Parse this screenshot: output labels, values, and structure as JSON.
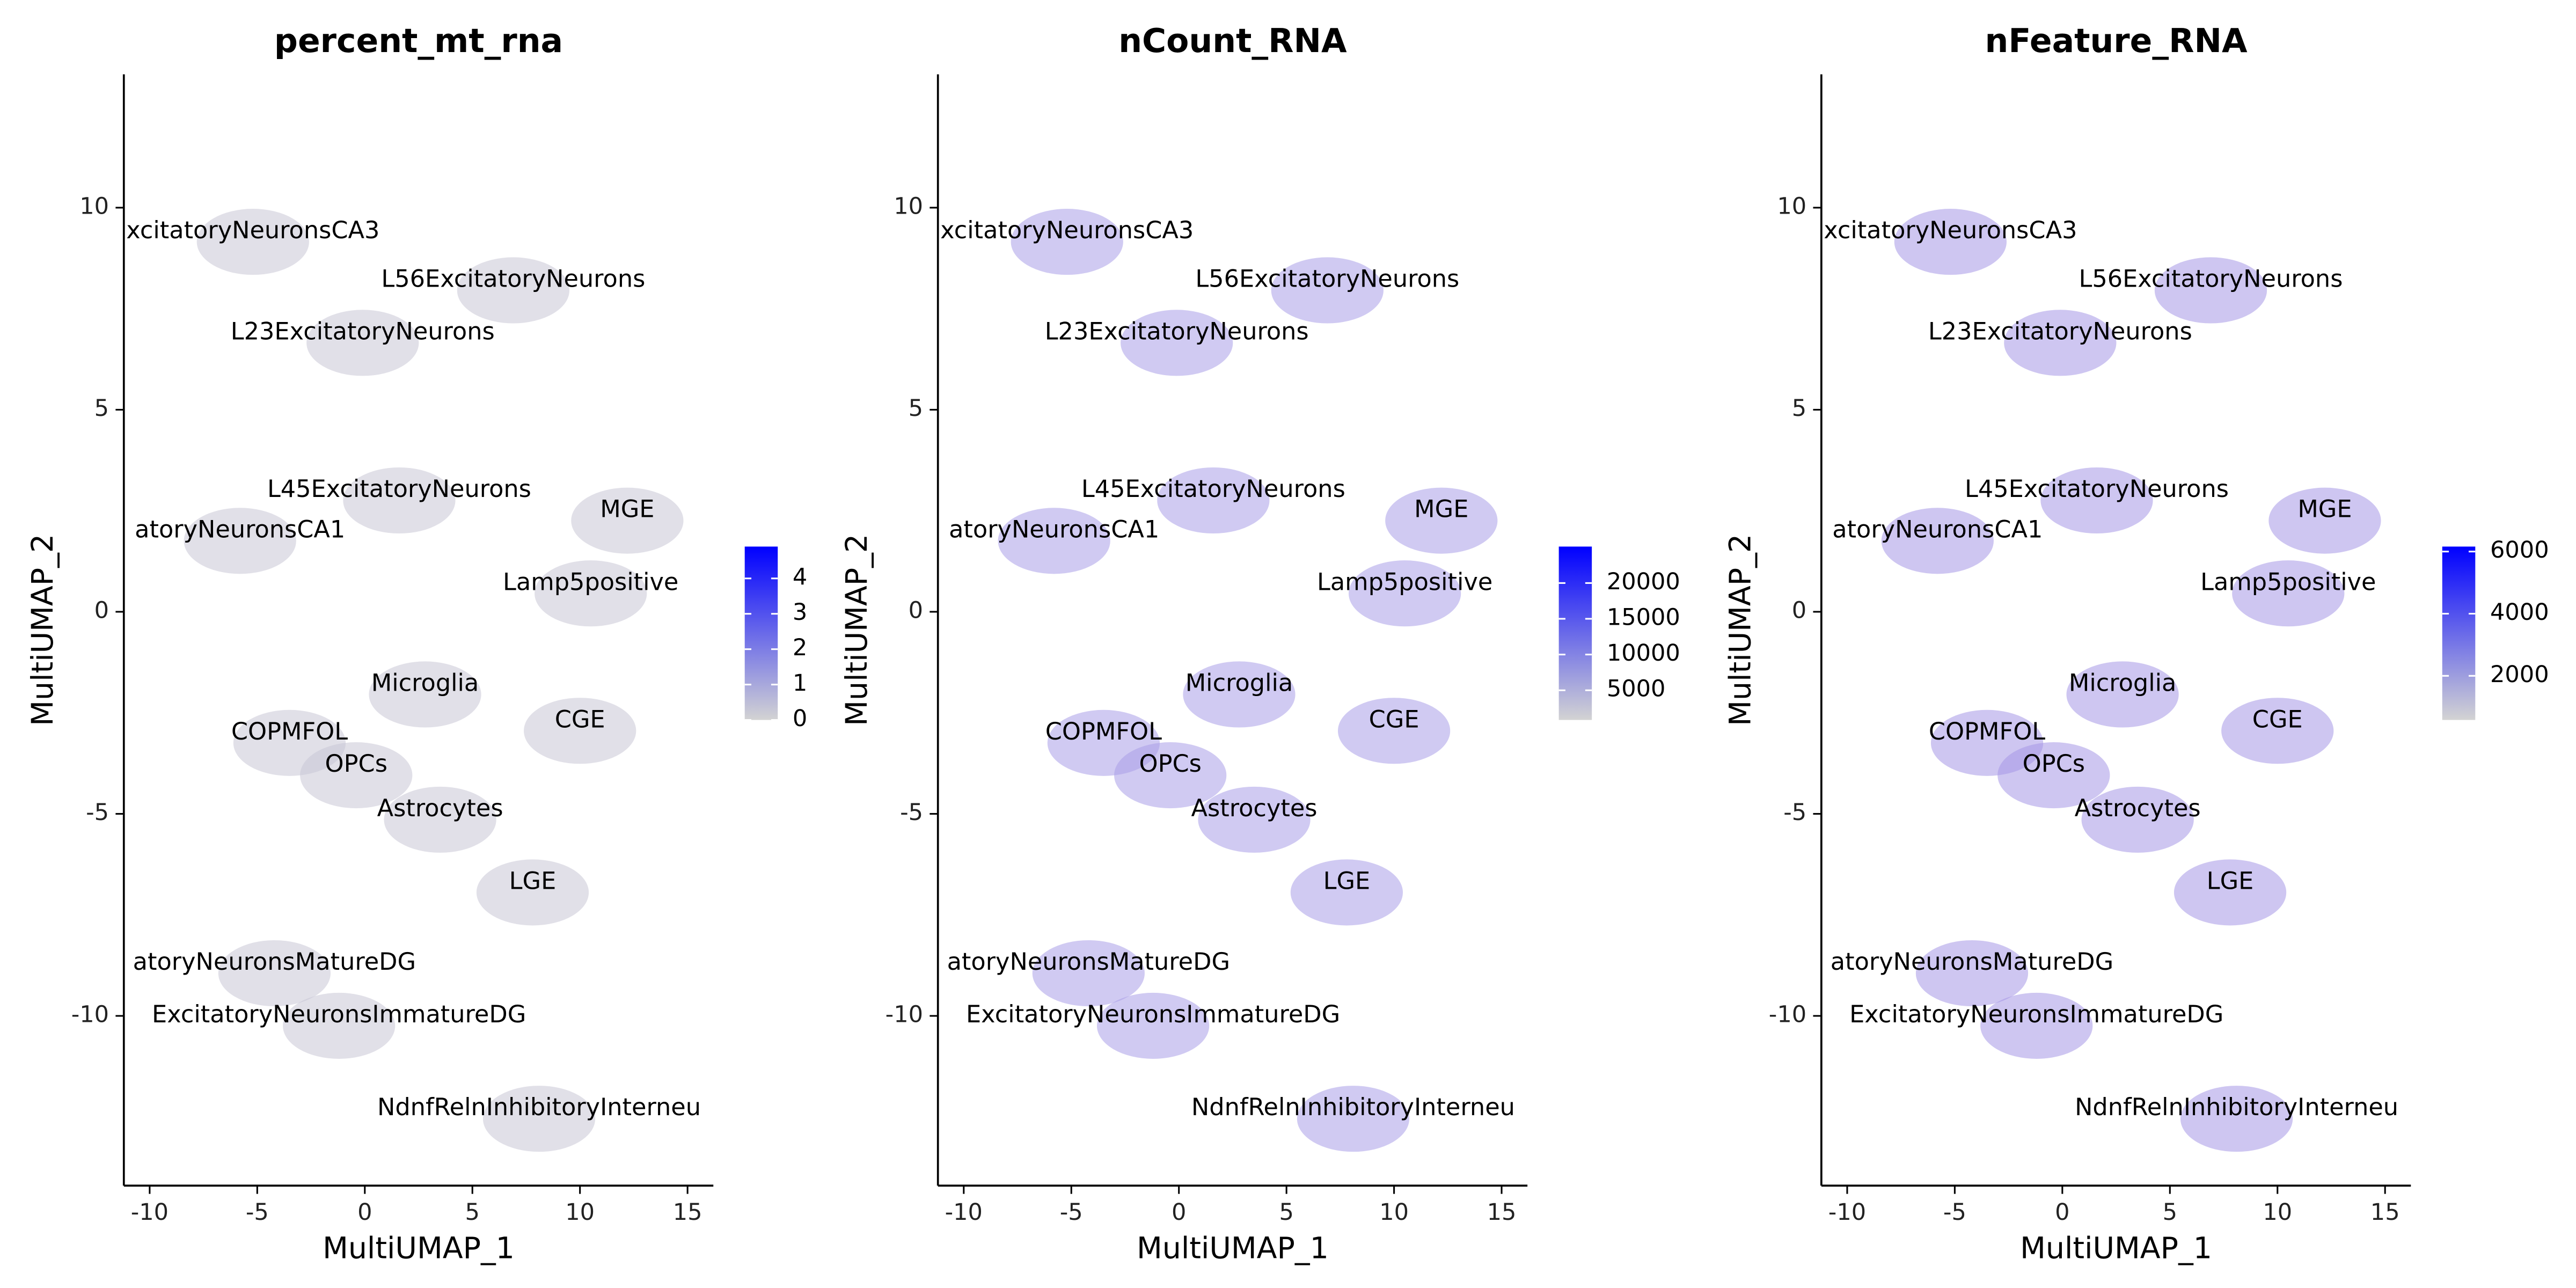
{
  "chart_data": [
    {
      "type": "scatter",
      "title": "percent_mt_rna",
      "xlabel": "MultiUMAP_1",
      "ylabel": "MultiUMAP_2",
      "xlim": [
        -11.2,
        16.2
      ],
      "ylim": [
        -14.2,
        13.3
      ],
      "xticks": [
        -10,
        -5,
        0,
        5,
        10,
        15
      ],
      "yticks": [
        -10,
        -5,
        0,
        5,
        10
      ],
      "point_color": "#c9c6d6",
      "colorbar": {
        "lim": [
          0,
          4.9
        ],
        "ticks": [
          0,
          1,
          2,
          3,
          4
        ],
        "low_color": "#d3d3d3",
        "high_color": "#0000ff"
      },
      "annotations": [
        {
          "text": "xcitatoryNeuronsCA3",
          "x": -5.2,
          "y": 9.4
        },
        {
          "text": "L56ExcitatoryNeurons",
          "x": 6.9,
          "y": 8.2
        },
        {
          "text": "L23ExcitatoryNeurons",
          "x": -0.1,
          "y": 6.9
        },
        {
          "text": "L45ExcitatoryNeurons",
          "x": 1.6,
          "y": 3.0
        },
        {
          "text": "atoryNeuronsCA1",
          "x": -5.8,
          "y": 2.0
        },
        {
          "text": "MGE",
          "x": 12.2,
          "y": 2.5
        },
        {
          "text": "Lamp5positive",
          "x": 10.5,
          "y": 0.7
        },
        {
          "text": "Microglia",
          "x": 2.8,
          "y": -1.8
        },
        {
          "text": "CGE",
          "x": 10.0,
          "y": -2.7
        },
        {
          "text": "COPMFOL",
          "x": -3.5,
          "y": -3.0
        },
        {
          "text": "OPCs",
          "x": -0.4,
          "y": -3.8
        },
        {
          "text": "Astrocytes",
          "x": 3.5,
          "y": -4.9
        },
        {
          "text": "LGE",
          "x": 7.8,
          "y": -6.7
        },
        {
          "text": "atoryNeuronsMatureDG",
          "x": -4.2,
          "y": -8.7
        },
        {
          "text": "ExcitatoryNeuronsImmatureDG",
          "x": -1.2,
          "y": -10.0
        },
        {
          "text": "NdnfRelnInhibitoryInterneu",
          "x": 8.1,
          "y": -12.3
        }
      ]
    },
    {
      "type": "scatter",
      "title": "nCount_RNA",
      "xlabel": "MultiUMAP_1",
      "ylabel": "MultiUMAP_2",
      "xlim": [
        -11.2,
        16.2
      ],
      "ylim": [
        -14.2,
        13.3
      ],
      "xticks": [
        -10,
        -5,
        0,
        5,
        10,
        15
      ],
      "yticks": [
        -10,
        -5,
        0,
        5,
        10
      ],
      "point_color": "#a99ee8",
      "colorbar": {
        "lim": [
          850,
          25100
        ],
        "ticks": [
          5000,
          10000,
          15000,
          20000
        ],
        "low_color": "#d3d3d3",
        "high_color": "#0000ff"
      },
      "annotations": [
        {
          "text": "xcitatoryNeuronsCA3",
          "x": -5.2,
          "y": 9.4
        },
        {
          "text": "L56ExcitatoryNeurons",
          "x": 6.9,
          "y": 8.2
        },
        {
          "text": "L23ExcitatoryNeurons",
          "x": -0.1,
          "y": 6.9
        },
        {
          "text": "L45ExcitatoryNeurons",
          "x": 1.6,
          "y": 3.0
        },
        {
          "text": "atoryNeuronsCA1",
          "x": -5.8,
          "y": 2.0
        },
        {
          "text": "MGE",
          "x": 12.2,
          "y": 2.5
        },
        {
          "text": "Lamp5positive",
          "x": 10.5,
          "y": 0.7
        },
        {
          "text": "Microglia",
          "x": 2.8,
          "y": -1.8
        },
        {
          "text": "CGE",
          "x": 10.0,
          "y": -2.7
        },
        {
          "text": "COPMFOL",
          "x": -3.5,
          "y": -3.0
        },
        {
          "text": "OPCs",
          "x": -0.4,
          "y": -3.8
        },
        {
          "text": "Astrocytes",
          "x": 3.5,
          "y": -4.9
        },
        {
          "text": "LGE",
          "x": 7.8,
          "y": -6.7
        },
        {
          "text": "atoryNeuronsMatureDG",
          "x": -4.2,
          "y": -8.7
        },
        {
          "text": "ExcitatoryNeuronsImmatureDG",
          "x": -1.2,
          "y": -10.0
        },
        {
          "text": "NdnfRelnInhibitoryInterneu",
          "x": 8.1,
          "y": -12.3
        }
      ]
    },
    {
      "type": "scatter",
      "title": "nFeature_RNA",
      "xlabel": "MultiUMAP_1",
      "ylabel": "MultiUMAP_2",
      "xlim": [
        -11.2,
        16.2
      ],
      "ylim": [
        -14.2,
        13.3
      ],
      "xticks": [
        -10,
        -5,
        0,
        5,
        10,
        15
      ],
      "yticks": [
        -10,
        -5,
        0,
        5,
        10
      ],
      "point_color": "#a597e6",
      "colorbar": {
        "lim": [
          580,
          6160
        ],
        "ticks": [
          2000,
          4000,
          6000
        ],
        "low_color": "#d3d3d3",
        "high_color": "#0000ff"
      },
      "annotations": [
        {
          "text": "xcitatoryNeuronsCA3",
          "x": -5.2,
          "y": 9.4
        },
        {
          "text": "L56ExcitatoryNeurons",
          "x": 6.9,
          "y": 8.2
        },
        {
          "text": "L23ExcitatoryNeurons",
          "x": -0.1,
          "y": 6.9
        },
        {
          "text": "L45ExcitatoryNeurons",
          "x": 1.6,
          "y": 3.0
        },
        {
          "text": "atoryNeuronsCA1",
          "x": -5.8,
          "y": 2.0
        },
        {
          "text": "MGE",
          "x": 12.2,
          "y": 2.5
        },
        {
          "text": "Lamp5positive",
          "x": 10.5,
          "y": 0.7
        },
        {
          "text": "Microglia",
          "x": 2.8,
          "y": -1.8
        },
        {
          "text": "CGE",
          "x": 10.0,
          "y": -2.7
        },
        {
          "text": "COPMFOL",
          "x": -3.5,
          "y": -3.0
        },
        {
          "text": "OPCs",
          "x": -0.4,
          "y": -3.8
        },
        {
          "text": "Astrocytes",
          "x": 3.5,
          "y": -4.9
        },
        {
          "text": "LGE",
          "x": 7.8,
          "y": -6.7
        },
        {
          "text": "atoryNeuronsMatureDG",
          "x": -4.2,
          "y": -8.7
        },
        {
          "text": "ExcitatoryNeuronsImmatureDG",
          "x": -1.2,
          "y": -10.0
        },
        {
          "text": "NdnfRelnInhibitoryInterneu",
          "x": 8.1,
          "y": -12.3
        }
      ]
    }
  ]
}
